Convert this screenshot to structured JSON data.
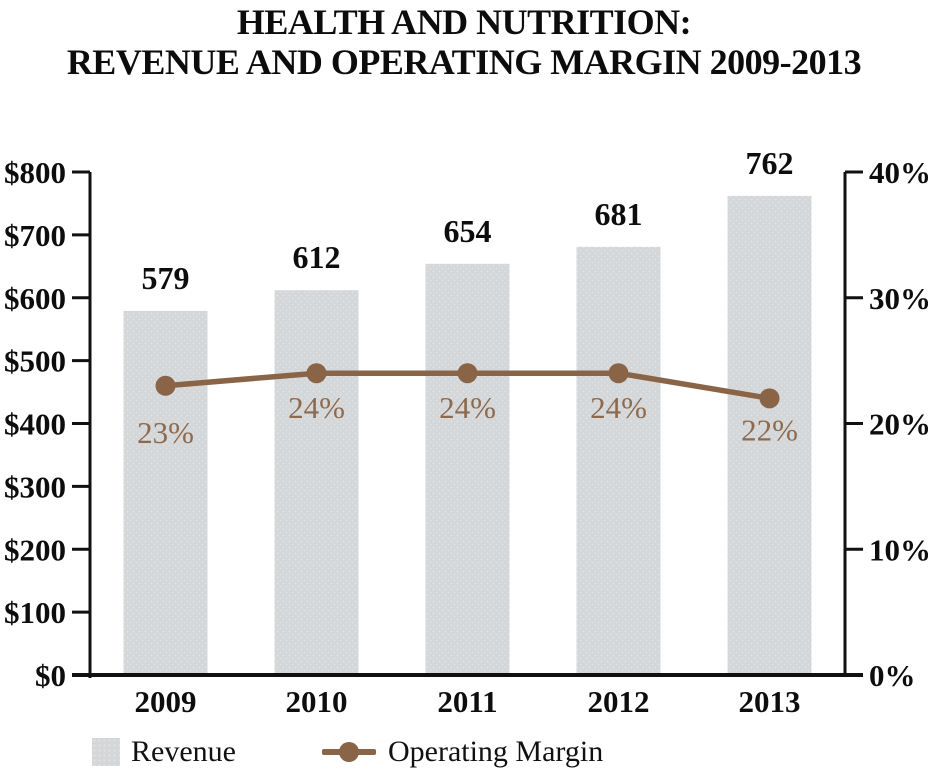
{
  "title": {
    "line1": "HEALTH AND NUTRITION:",
    "line2": "REVENUE AND OPERATING MARGIN 2009-2013"
  },
  "colors": {
    "bar_fill": "#d4d7d9",
    "bar_dot": "#e9e2db",
    "line": "#8a6446",
    "pct_label": "#8d6a4e",
    "axis": "#111111",
    "text": "#0d0d0d"
  },
  "legend": [
    {
      "label": "Revenue",
      "type": "bar"
    },
    {
      "label": "Operating Margin",
      "type": "line"
    }
  ],
  "chart_data": {
    "type": "bar+line combo",
    "title": "HEALTH AND NUTRITION: REVENUE AND OPERATING MARGIN 2009-2013",
    "categories": [
      "2009",
      "2010",
      "2011",
      "2012",
      "2013"
    ],
    "series": [
      {
        "name": "Revenue",
        "type": "bar",
        "axis": "left",
        "values": [
          579,
          612,
          654,
          681,
          762
        ],
        "data_labels": [
          "579",
          "612",
          "654",
          "681",
          "762"
        ]
      },
      {
        "name": "Operating Margin",
        "type": "line",
        "axis": "right",
        "values": [
          23,
          24,
          24,
          24,
          22
        ],
        "data_labels": [
          "23%",
          "24%",
          "24%",
          "24%",
          "22%"
        ]
      }
    ],
    "left_axis": {
      "min": 0,
      "max": 800,
      "tick_labels": [
        "$0",
        "$100",
        "$200",
        "$300",
        "$400",
        "$500",
        "$600",
        "$700",
        "$800"
      ]
    },
    "right_axis": {
      "min": 0,
      "max": 40,
      "tick_labels": [
        "0%",
        "10%",
        "20%",
        "30%",
        "40%"
      ]
    },
    "grid": false,
    "legend_position": "bottom-left"
  }
}
